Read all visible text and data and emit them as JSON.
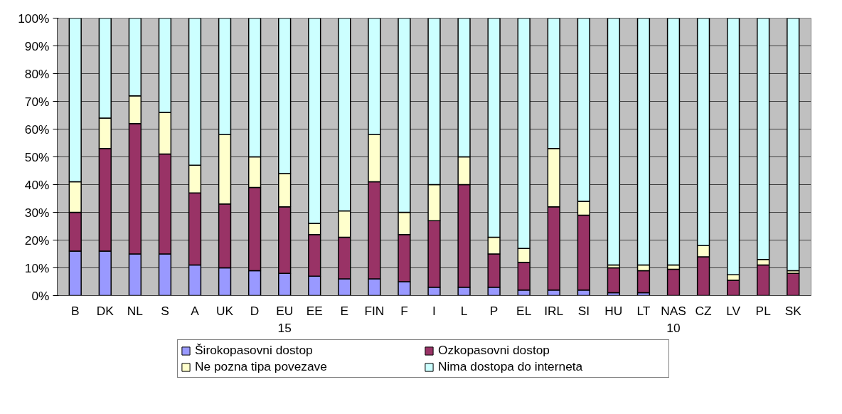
{
  "chart_data": {
    "type": "bar",
    "stacked": true,
    "categories": [
      "B",
      "DK",
      "NL",
      "S",
      "A",
      "UK",
      "D",
      "EU\n15",
      "EE",
      "E",
      "FIN",
      "F",
      "I",
      "L",
      "P",
      "EL",
      "IRL",
      "SI",
      "HU",
      "LT",
      "NAS\n10",
      "CZ",
      "LV",
      "PL",
      "SK"
    ],
    "series": [
      {
        "name": "Širokopasovni dostop",
        "color": "#9999ff",
        "values": [
          16,
          16,
          15,
          15,
          11,
          10,
          9,
          8,
          7,
          6,
          6,
          5,
          3,
          3,
          3,
          2,
          2,
          2,
          1,
          1,
          0,
          0,
          0,
          0,
          0
        ]
      },
      {
        "name": "Ozkopasovni dostop",
        "color": "#993366",
        "values": [
          14,
          37,
          47,
          36,
          26,
          23,
          30,
          24,
          15,
          15,
          35,
          17,
          24,
          37,
          12,
          10,
          30,
          27,
          9,
          8,
          9.5,
          14,
          5.5,
          11,
          8
        ]
      },
      {
        "name": "Ne pozna tipa povezave",
        "color": "#ffffcc",
        "values": [
          11,
          11,
          10,
          15,
          10,
          25,
          11,
          12,
          4,
          9.5,
          17,
          8,
          13,
          10,
          6,
          5,
          21,
          5,
          1,
          2,
          1.5,
          4,
          2,
          2,
          1
        ]
      },
      {
        "name": "Nima dostopa do interneta",
        "color": "#ccffff",
        "values": [
          59,
          36,
          28,
          34,
          53,
          42,
          50,
          56,
          74,
          69.5,
          42,
          70,
          60,
          50,
          79,
          83,
          47,
          66,
          89,
          89,
          89,
          82,
          92.5,
          87,
          91
        ]
      }
    ],
    "ylim": [
      0,
      100
    ],
    "yticks": [
      {
        "value": 0,
        "label": "0%"
      },
      {
        "value": 10,
        "label": "10%"
      },
      {
        "value": 20,
        "label": "20%"
      },
      {
        "value": 30,
        "label": "30%"
      },
      {
        "value": 40,
        "label": "40%"
      },
      {
        "value": 50,
        "label": "50%"
      },
      {
        "value": 60,
        "label": "60%"
      },
      {
        "value": 70,
        "label": "70%"
      },
      {
        "value": 80,
        "label": "80%"
      },
      {
        "value": 90,
        "label": "90%"
      },
      {
        "value": 100,
        "label": "100%"
      }
    ],
    "grid": "y",
    "legend": "bottom"
  }
}
